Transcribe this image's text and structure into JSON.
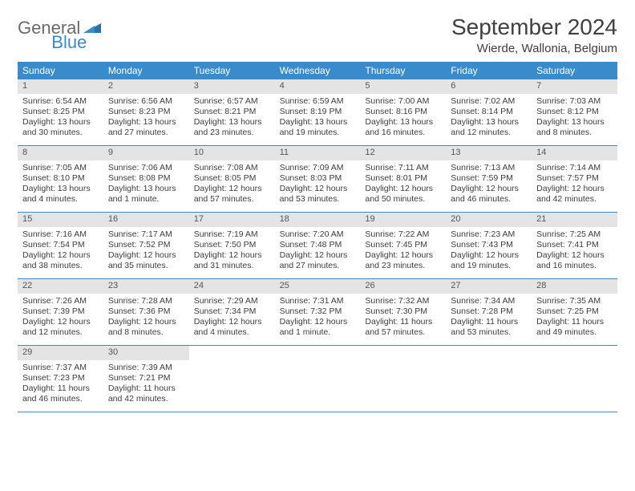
{
  "logo": {
    "part1": "General",
    "part2": "Blue"
  },
  "title": "September 2024",
  "location": "Wierde, Wallonia, Belgium",
  "colors": {
    "header_bg": "#3a8bc9",
    "header_text": "#ffffff",
    "daynum_bg": "#e4e4e4",
    "border": "#3a8bc9",
    "text": "#3d3d3d",
    "logo_gray": "#6a6a6a",
    "logo_blue": "#3a8bc9"
  },
  "day_names": [
    "Sunday",
    "Monday",
    "Tuesday",
    "Wednesday",
    "Thursday",
    "Friday",
    "Saturday"
  ],
  "days": [
    {
      "n": "1",
      "sunrise": "6:54 AM",
      "sunset": "8:25 PM",
      "daylight": "13 hours and 30 minutes."
    },
    {
      "n": "2",
      "sunrise": "6:56 AM",
      "sunset": "8:23 PM",
      "daylight": "13 hours and 27 minutes."
    },
    {
      "n": "3",
      "sunrise": "6:57 AM",
      "sunset": "8:21 PM",
      "daylight": "13 hours and 23 minutes."
    },
    {
      "n": "4",
      "sunrise": "6:59 AM",
      "sunset": "8:19 PM",
      "daylight": "13 hours and 19 minutes."
    },
    {
      "n": "5",
      "sunrise": "7:00 AM",
      "sunset": "8:16 PM",
      "daylight": "13 hours and 16 minutes."
    },
    {
      "n": "6",
      "sunrise": "7:02 AM",
      "sunset": "8:14 PM",
      "daylight": "13 hours and 12 minutes."
    },
    {
      "n": "7",
      "sunrise": "7:03 AM",
      "sunset": "8:12 PM",
      "daylight": "13 hours and 8 minutes."
    },
    {
      "n": "8",
      "sunrise": "7:05 AM",
      "sunset": "8:10 PM",
      "daylight": "13 hours and 4 minutes."
    },
    {
      "n": "9",
      "sunrise": "7:06 AM",
      "sunset": "8:08 PM",
      "daylight": "13 hours and 1 minute."
    },
    {
      "n": "10",
      "sunrise": "7:08 AM",
      "sunset": "8:05 PM",
      "daylight": "12 hours and 57 minutes."
    },
    {
      "n": "11",
      "sunrise": "7:09 AM",
      "sunset": "8:03 PM",
      "daylight": "12 hours and 53 minutes."
    },
    {
      "n": "12",
      "sunrise": "7:11 AM",
      "sunset": "8:01 PM",
      "daylight": "12 hours and 50 minutes."
    },
    {
      "n": "13",
      "sunrise": "7:13 AM",
      "sunset": "7:59 PM",
      "daylight": "12 hours and 46 minutes."
    },
    {
      "n": "14",
      "sunrise": "7:14 AM",
      "sunset": "7:57 PM",
      "daylight": "12 hours and 42 minutes."
    },
    {
      "n": "15",
      "sunrise": "7:16 AM",
      "sunset": "7:54 PM",
      "daylight": "12 hours and 38 minutes."
    },
    {
      "n": "16",
      "sunrise": "7:17 AM",
      "sunset": "7:52 PM",
      "daylight": "12 hours and 35 minutes."
    },
    {
      "n": "17",
      "sunrise": "7:19 AM",
      "sunset": "7:50 PM",
      "daylight": "12 hours and 31 minutes."
    },
    {
      "n": "18",
      "sunrise": "7:20 AM",
      "sunset": "7:48 PM",
      "daylight": "12 hours and 27 minutes."
    },
    {
      "n": "19",
      "sunrise": "7:22 AM",
      "sunset": "7:45 PM",
      "daylight": "12 hours and 23 minutes."
    },
    {
      "n": "20",
      "sunrise": "7:23 AM",
      "sunset": "7:43 PM",
      "daylight": "12 hours and 19 minutes."
    },
    {
      "n": "21",
      "sunrise": "7:25 AM",
      "sunset": "7:41 PM",
      "daylight": "12 hours and 16 minutes."
    },
    {
      "n": "22",
      "sunrise": "7:26 AM",
      "sunset": "7:39 PM",
      "daylight": "12 hours and 12 minutes."
    },
    {
      "n": "23",
      "sunrise": "7:28 AM",
      "sunset": "7:36 PM",
      "daylight": "12 hours and 8 minutes."
    },
    {
      "n": "24",
      "sunrise": "7:29 AM",
      "sunset": "7:34 PM",
      "daylight": "12 hours and 4 minutes."
    },
    {
      "n": "25",
      "sunrise": "7:31 AM",
      "sunset": "7:32 PM",
      "daylight": "12 hours and 1 minute."
    },
    {
      "n": "26",
      "sunrise": "7:32 AM",
      "sunset": "7:30 PM",
      "daylight": "11 hours and 57 minutes."
    },
    {
      "n": "27",
      "sunrise": "7:34 AM",
      "sunset": "7:28 PM",
      "daylight": "11 hours and 53 minutes."
    },
    {
      "n": "28",
      "sunrise": "7:35 AM",
      "sunset": "7:25 PM",
      "daylight": "11 hours and 49 minutes."
    },
    {
      "n": "29",
      "sunrise": "7:37 AM",
      "sunset": "7:23 PM",
      "daylight": "11 hours and 46 minutes."
    },
    {
      "n": "30",
      "sunrise": "7:39 AM",
      "sunset": "7:21 PM",
      "daylight": "11 hours and 42 minutes."
    }
  ],
  "labels": {
    "sunrise_prefix": "Sunrise: ",
    "sunset_prefix": "Sunset: ",
    "daylight_prefix": "Daylight: "
  },
  "layout": {
    "columns": 7,
    "first_day_offset": 0,
    "total_cells": 35
  }
}
